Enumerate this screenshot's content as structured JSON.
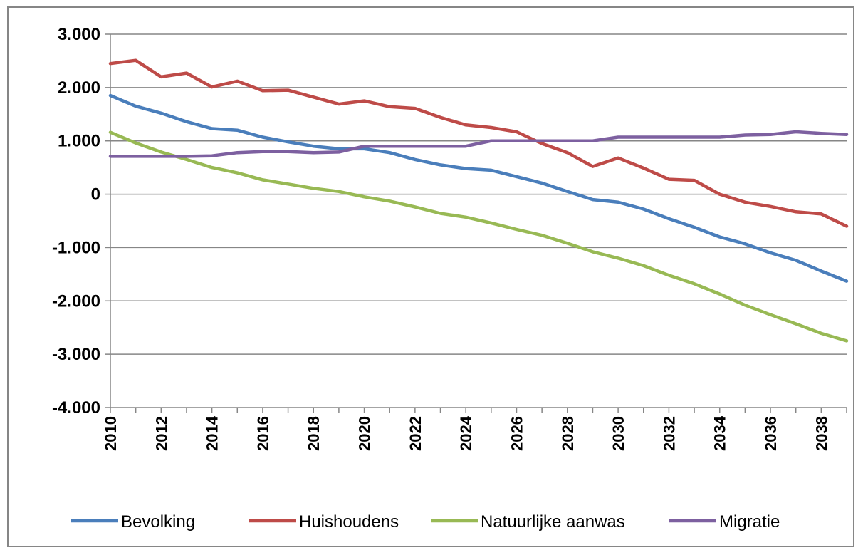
{
  "chart_data": {
    "type": "line",
    "title": "",
    "xlabel": "",
    "ylabel": "",
    "ylim": [
      -4000,
      3000
    ],
    "ytick_values": [
      3000,
      2000,
      1000,
      0,
      -1000,
      -2000,
      -3000,
      -4000
    ],
    "ytick_labels": [
      "3.000",
      "2.000",
      "1.000",
      "0",
      "-1.000",
      "-2.000",
      "-3.000",
      "-4.000"
    ],
    "x": [
      2010,
      2011,
      2012,
      2013,
      2014,
      2015,
      2016,
      2017,
      2018,
      2019,
      2020,
      2021,
      2022,
      2023,
      2024,
      2025,
      2026,
      2027,
      2028,
      2029,
      2030,
      2031,
      2032,
      2033,
      2034,
      2035,
      2036,
      2037,
      2038,
      2039
    ],
    "xtick_labels": [
      "2010",
      "2012",
      "2014",
      "2016",
      "2018",
      "2020",
      "2022",
      "2024",
      "2026",
      "2028",
      "2030",
      "2032",
      "2034",
      "2036",
      "2038"
    ],
    "grid": "horizontal",
    "legend_position": "bottom",
    "series": [
      {
        "name": "Bevolking",
        "color": "#4a7ebb",
        "values": [
          1850,
          1650,
          1520,
          1360,
          1230,
          1200,
          1070,
          980,
          900,
          850,
          850,
          780,
          650,
          550,
          480,
          450,
          330,
          210,
          50,
          -100,
          -150,
          -280,
          -460,
          -620,
          -800,
          -930,
          -1100,
          -1240,
          -1440,
          -1630
        ]
      },
      {
        "name": "Huishoudens",
        "color": "#be4b48",
        "values": [
          2450,
          2510,
          2200,
          2270,
          2010,
          2120,
          1940,
          1950,
          1820,
          1690,
          1750,
          1640,
          1610,
          1440,
          1300,
          1250,
          1170,
          950,
          780,
          520,
          680,
          490,
          280,
          260,
          0,
          -150,
          -230,
          -330,
          -370,
          -600
        ]
      },
      {
        "name": "Natuurlijke aanwas",
        "color": "#98b954",
        "values": [
          1160,
          960,
          790,
          650,
          500,
          400,
          270,
          190,
          110,
          50,
          -50,
          -130,
          -240,
          -360,
          -430,
          -540,
          -660,
          -770,
          -920,
          -1080,
          -1200,
          -1340,
          -1520,
          -1680,
          -1870,
          -2080,
          -2260,
          -2430,
          -2610,
          -2750
        ]
      },
      {
        "name": "Migratie",
        "color": "#7d60a0",
        "values": [
          710,
          710,
          710,
          710,
          720,
          780,
          800,
          800,
          780,
          790,
          900,
          900,
          900,
          900,
          900,
          1000,
          1000,
          1000,
          1000,
          1000,
          1070,
          1070,
          1070,
          1070,
          1070,
          1110,
          1120,
          1170,
          1140,
          1120
        ]
      }
    ]
  }
}
